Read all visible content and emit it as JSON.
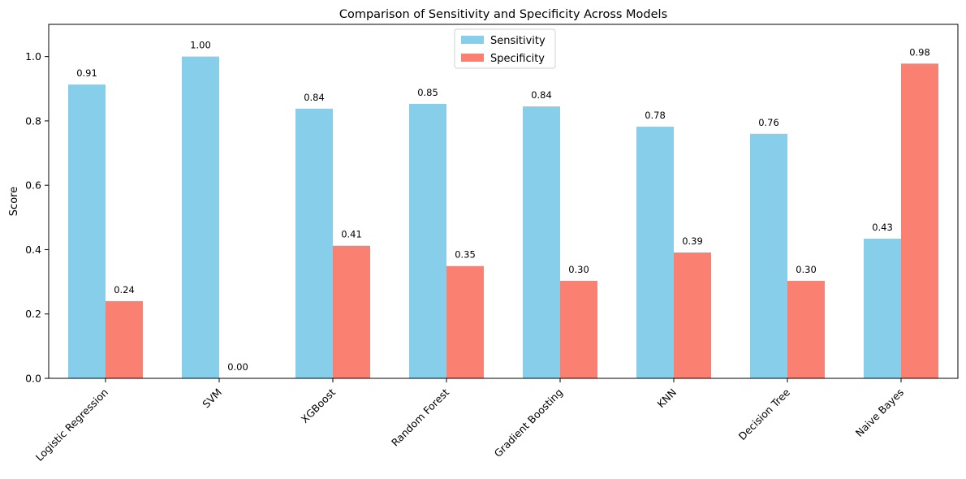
{
  "chart_data": {
    "type": "bar",
    "title": "Comparison of Sensitivity and Specificity Across Models",
    "xlabel": "",
    "ylabel": "Score",
    "categories": [
      "Logistic Regression",
      "SVM",
      "XGBoost",
      "Random Forest",
      "Gradient Boosting",
      "KNN",
      "Decision Tree",
      "Naive Bayes"
    ],
    "series": [
      {
        "name": "Sensitivity",
        "color": "#87CEEB",
        "values": [
          0.913,
          1.0,
          0.838,
          0.853,
          0.845,
          0.782,
          0.76,
          0.434
        ]
      },
      {
        "name": "Specificity",
        "color": "#FA8072",
        "values": [
          0.24,
          0.0,
          0.412,
          0.349,
          0.303,
          0.391,
          0.303,
          0.978
        ]
      }
    ],
    "data_labels": [
      [
        "0.91",
        "1.00",
        "0.84",
        "0.85",
        "0.84",
        "0.78",
        "0.76",
        "0.43"
      ],
      [
        "0.24",
        "0.00",
        "0.41",
        "0.35",
        "0.30",
        "0.39",
        "0.30",
        "0.98"
      ]
    ],
    "ylim": [
      0,
      1.1
    ],
    "yticks": [
      "0.0",
      "0.2",
      "0.4",
      "0.6",
      "0.8",
      "1.0"
    ],
    "ytick_values": [
      0,
      0.2,
      0.4,
      0.6,
      0.8,
      1.0
    ],
    "legend_position": "top-center",
    "grid": false
  }
}
